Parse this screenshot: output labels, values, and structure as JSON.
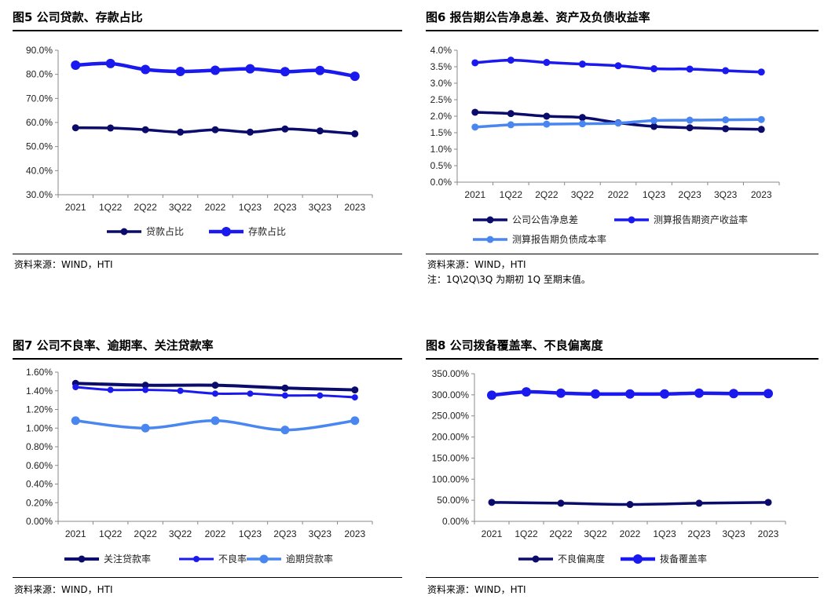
{
  "panels": [
    {
      "title": "图5  公司贷款、存款占比",
      "source": "资料来源：WIND，HTI",
      "note": ""
    },
    {
      "title": "图6  报告期公告净息差、资产及负债收益率",
      "source": "资料来源：WIND，HTI",
      "note": "注：1Q\\2Q\\3Q 为期初 1Q 至期末值。"
    },
    {
      "title": "图7  公司不良率、逾期率、关注贷款率",
      "source": "资料来源：WIND，HTI",
      "note": ""
    },
    {
      "title": "图8  公司拨备覆盖率、不良偏离度",
      "source": "资料来源：WIND，HTI",
      "note": ""
    }
  ],
  "chart_data": [
    {
      "type": "line",
      "categories": [
        "2021",
        "1Q22",
        "2Q22",
        "3Q22",
        "2022",
        "1Q23",
        "2Q23",
        "3Q23",
        "2023"
      ],
      "ylim": [
        30,
        90
      ],
      "yticks": [
        30,
        40,
        50,
        60,
        70,
        80,
        90
      ],
      "ytick_labels": [
        "30.0%",
        "40.0%",
        "50.0%",
        "60.0%",
        "70.0%",
        "80.0%",
        "90.0%"
      ],
      "grid": false,
      "legend": "bottom",
      "series": [
        {
          "name": "贷款占比",
          "color": "#0b0b6b",
          "values": [
            57.8,
            57.7,
            57.0,
            56.0,
            57.0,
            56.0,
            57.3,
            56.5,
            55.3
          ]
        },
        {
          "name": "存款占比",
          "color": "#1a1aee",
          "values": [
            83.8,
            84.5,
            82.0,
            81.2,
            81.7,
            82.3,
            81.1,
            81.6,
            79.2
          ]
        }
      ]
    },
    {
      "type": "line",
      "categories": [
        "2021",
        "1Q22",
        "2Q22",
        "3Q22",
        "2022",
        "1Q23",
        "2Q23",
        "3Q23",
        "2023"
      ],
      "ylim": [
        0,
        4
      ],
      "yticks": [
        0,
        0.5,
        1,
        1.5,
        2,
        2.5,
        3,
        3.5,
        4
      ],
      "ytick_labels": [
        "0.0%",
        "0.5%",
        "1.0%",
        "1.5%",
        "2.0%",
        "2.5%",
        "3.0%",
        "3.5%",
        "4.0%"
      ],
      "grid": false,
      "legend": "bottom",
      "series": [
        {
          "name": "公司公告净息差",
          "color": "#0b0b6b",
          "values": [
            2.12,
            2.08,
            2.0,
            1.96,
            1.8,
            1.69,
            1.65,
            1.62,
            1.6
          ]
        },
        {
          "name": "测算报告期资产收益率",
          "color": "#1a1aee",
          "values": [
            3.62,
            3.7,
            3.63,
            3.58,
            3.53,
            3.44,
            3.43,
            3.38,
            3.34
          ]
        },
        {
          "name": "测算报告期负债成本率",
          "color": "#4a86f0",
          "values": [
            1.67,
            1.74,
            1.76,
            1.77,
            1.79,
            1.87,
            1.88,
            1.89,
            1.9
          ]
        }
      ]
    },
    {
      "type": "line",
      "categories": [
        "2021",
        "1Q22",
        "2Q22",
        "3Q22",
        "2022",
        "1Q23",
        "2Q23",
        "3Q23",
        "2023"
      ],
      "ylim": [
        0,
        1.6
      ],
      "yticks": [
        0,
        0.2,
        0.4,
        0.6,
        0.8,
        1.0,
        1.2,
        1.4,
        1.6
      ],
      "ytick_labels": [
        "0.00%",
        "0.20%",
        "0.40%",
        "0.60%",
        "0.80%",
        "1.00%",
        "1.20%",
        "1.40%",
        "1.60%"
      ],
      "grid": false,
      "legend": "bottom",
      "series": [
        {
          "name": "关注贷款率",
          "color": "#0b0b6b",
          "values": [
            1.48,
            null,
            1.46,
            null,
            1.46,
            null,
            1.43,
            null,
            1.41
          ]
        },
        {
          "name": "不良率",
          "color": "#1a1aee",
          "values": [
            1.44,
            1.41,
            1.41,
            1.4,
            1.37,
            1.37,
            1.35,
            1.35,
            1.33
          ]
        },
        {
          "name": "逾期贷款率",
          "color": "#4a86f0",
          "values": [
            1.08,
            null,
            1.0,
            null,
            1.08,
            null,
            0.98,
            null,
            1.08
          ]
        }
      ]
    },
    {
      "type": "line",
      "categories": [
        "2021",
        "1Q22",
        "2Q22",
        "3Q22",
        "2022",
        "1Q23",
        "2Q23",
        "3Q23",
        "2023"
      ],
      "ylim": [
        0,
        350
      ],
      "yticks": [
        0,
        50,
        100,
        150,
        200,
        250,
        300,
        350
      ],
      "ytick_labels": [
        "0.00%",
        "50.00%",
        "100.00%",
        "150.00%",
        "200.00%",
        "250.00%",
        "300.00%",
        "350.00%"
      ],
      "grid": false,
      "legend": "bottom",
      "series": [
        {
          "name": "不良偏离度",
          "color": "#0b0b6b",
          "values": [
            45,
            null,
            43,
            null,
            40,
            null,
            43,
            null,
            45
          ]
        },
        {
          "name": "拨备覆盖率",
          "color": "#1a1aee",
          "values": [
            299,
            307,
            304,
            302,
            302,
            302,
            304,
            303,
            303
          ]
        }
      ]
    }
  ]
}
